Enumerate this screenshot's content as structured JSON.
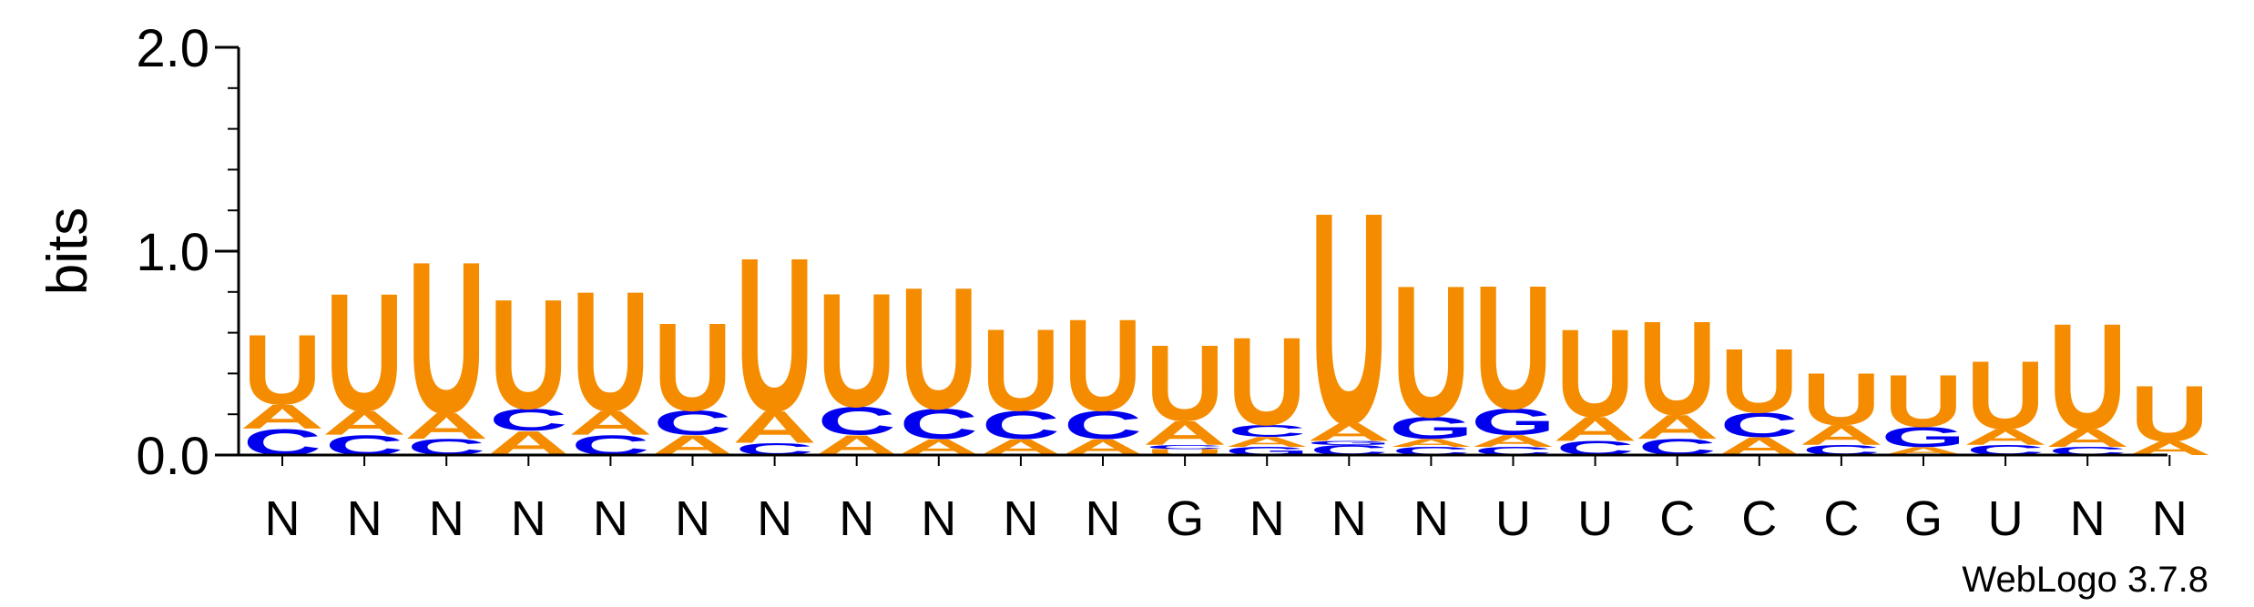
{
  "chart_data": {
    "type": "sequence-logo",
    "ylabel": "bits",
    "ylim": [
      0,
      2.0
    ],
    "yticks": [
      {
        "value": 0.0,
        "label": "0.0"
      },
      {
        "value": 1.0,
        "label": "1.0"
      },
      {
        "value": 2.0,
        "label": "2.0"
      }
    ],
    "categories": [
      "N",
      "N",
      "N",
      "N",
      "N",
      "N",
      "N",
      "N",
      "N",
      "N",
      "N",
      "G",
      "N",
      "N",
      "N",
      "U",
      "U",
      "C",
      "C",
      "C",
      "G",
      "U",
      "N",
      "N"
    ],
    "stacks": [
      {
        "position": 1,
        "letters": [
          {
            "base": "C",
            "bits": 0.13
          },
          {
            "base": "A",
            "bits": 0.12
          },
          {
            "base": "U",
            "bits": 0.35
          }
        ]
      },
      {
        "position": 2,
        "letters": [
          {
            "base": "C",
            "bits": 0.1
          },
          {
            "base": "A",
            "bits": 0.12
          },
          {
            "base": "U",
            "bits": 0.59
          }
        ]
      },
      {
        "position": 3,
        "letters": [
          {
            "base": "C",
            "bits": 0.08
          },
          {
            "base": "A",
            "bits": 0.13
          },
          {
            "base": "U",
            "bits": 0.76
          }
        ]
      },
      {
        "position": 4,
        "letters": [
          {
            "base": "A",
            "bits": 0.12
          },
          {
            "base": "C",
            "bits": 0.11
          },
          {
            "base": "U",
            "bits": 0.55
          }
        ]
      },
      {
        "position": 5,
        "letters": [
          {
            "base": "C",
            "bits": 0.1
          },
          {
            "base": "A",
            "bits": 0.12
          },
          {
            "base": "U",
            "bits": 0.6
          }
        ]
      },
      {
        "position": 6,
        "letters": [
          {
            "base": "A",
            "bits": 0.1
          },
          {
            "base": "C",
            "bits": 0.12
          },
          {
            "base": "U",
            "bits": 0.44
          }
        ]
      },
      {
        "position": 7,
        "letters": [
          {
            "base": "C",
            "bits": 0.06
          },
          {
            "base": "A",
            "bits": 0.16
          },
          {
            "base": "U",
            "bits": 0.77
          }
        ]
      },
      {
        "position": 8,
        "letters": [
          {
            "base": "A",
            "bits": 0.1
          },
          {
            "base": "C",
            "bits": 0.14
          },
          {
            "base": "U",
            "bits": 0.57
          }
        ]
      },
      {
        "position": 9,
        "letters": [
          {
            "base": "A",
            "bits": 0.08
          },
          {
            "base": "C",
            "bits": 0.15
          },
          {
            "base": "U",
            "bits": 0.61
          }
        ]
      },
      {
        "position": 10,
        "letters": [
          {
            "base": "A",
            "bits": 0.08
          },
          {
            "base": "C",
            "bits": 0.14
          },
          {
            "base": "U",
            "bits": 0.41
          }
        ]
      },
      {
        "position": 11,
        "letters": [
          {
            "base": "A",
            "bits": 0.08
          },
          {
            "base": "C",
            "bits": 0.14
          },
          {
            "base": "U",
            "bits": 0.46
          }
        ]
      },
      {
        "position": 12,
        "letters": [
          {
            "base": "U",
            "bits": 0.03
          },
          {
            "base": "C",
            "bits": 0.02
          },
          {
            "base": "A",
            "bits": 0.12
          },
          {
            "base": "U",
            "bits": 0.38
          }
        ]
      },
      {
        "position": 13,
        "letters": [
          {
            "base": "G",
            "bits": 0.04
          },
          {
            "base": "A",
            "bits": 0.05
          },
          {
            "base": "C",
            "bits": 0.06
          },
          {
            "base": "U",
            "bits": 0.44
          }
        ]
      },
      {
        "position": 14,
        "letters": [
          {
            "base": "C",
            "bits": 0.05
          },
          {
            "base": "G",
            "bits": 0.02
          },
          {
            "base": "A",
            "bits": 0.09
          },
          {
            "base": "U",
            "bits": 1.06
          }
        ]
      },
      {
        "position": 15,
        "letters": [
          {
            "base": "C",
            "bits": 0.04
          },
          {
            "base": "A",
            "bits": 0.04
          },
          {
            "base": "G",
            "bits": 0.11
          },
          {
            "base": "U",
            "bits": 0.66
          }
        ]
      },
      {
        "position": 16,
        "letters": [
          {
            "base": "C",
            "bits": 0.04
          },
          {
            "base": "A",
            "bits": 0.06
          },
          {
            "base": "G",
            "bits": 0.13
          },
          {
            "base": "U",
            "bits": 0.62
          }
        ]
      },
      {
        "position": 17,
        "letters": [
          {
            "base": "C",
            "bits": 0.07
          },
          {
            "base": "A",
            "bits": 0.12
          },
          {
            "base": "U",
            "bits": 0.44
          }
        ]
      },
      {
        "position": 18,
        "letters": [
          {
            "base": "C",
            "bits": 0.08
          },
          {
            "base": "A",
            "bits": 0.12
          },
          {
            "base": "U",
            "bits": 0.47
          }
        ]
      },
      {
        "position": 19,
        "letters": [
          {
            "base": "A",
            "bits": 0.09
          },
          {
            "base": "C",
            "bits": 0.12
          },
          {
            "base": "U",
            "bits": 0.32
          }
        ]
      },
      {
        "position": 20,
        "letters": [
          {
            "base": "C",
            "bits": 0.05
          },
          {
            "base": "A",
            "bits": 0.1
          },
          {
            "base": "U",
            "bits": 0.26
          }
        ]
      },
      {
        "position": 21,
        "letters": [
          {
            "base": "A",
            "bits": 0.04
          },
          {
            "base": "G",
            "bits": 0.1
          },
          {
            "base": "U",
            "bits": 0.26
          }
        ]
      },
      {
        "position": 22,
        "letters": [
          {
            "base": "C",
            "bits": 0.05
          },
          {
            "base": "A",
            "bits": 0.08
          },
          {
            "base": "U",
            "bits": 0.34
          }
        ]
      },
      {
        "position": 23,
        "letters": [
          {
            "base": "C",
            "bits": 0.04
          },
          {
            "base": "A",
            "bits": 0.09
          },
          {
            "base": "U",
            "bits": 0.53
          }
        ]
      },
      {
        "position": 24,
        "letters": [
          {
            "base": "A",
            "bits": 0.07
          },
          {
            "base": "U",
            "bits": 0.28
          }
        ]
      }
    ]
  },
  "colors": {
    "A": "#f58c00",
    "U": "#f58c00",
    "C": "#0000ee",
    "G": "#0000ee"
  },
  "watermark": "WebLogo 3.7.8"
}
